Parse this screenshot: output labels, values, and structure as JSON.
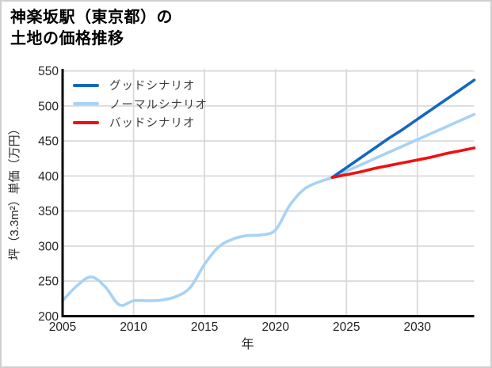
{
  "title": {
    "line1": "神楽坂駅（東京都）の",
    "line2": "土地の価格推移"
  },
  "legend": {
    "items": [
      {
        "id": "good",
        "label": "グッドシナリオ",
        "color": "#1467c0"
      },
      {
        "id": "normal",
        "label": "ノーマルシナリオ",
        "color": "#a8d2f5"
      },
      {
        "id": "bad",
        "label": "バッドシナリオ",
        "color": "#ee1111"
      }
    ]
  },
  "chart_data": {
    "type": "line",
    "title": "神楽坂駅（東京都）の土地の価格推移",
    "xlabel": "年",
    "ylabel": "坪（3.3m²）単価（万円）",
    "xlim": [
      2005,
      2034
    ],
    "ylim": [
      200,
      553
    ],
    "x_ticks": [
      2005,
      2010,
      2015,
      2020,
      2025,
      2030
    ],
    "y_ticks": [
      200,
      250,
      300,
      350,
      400,
      450,
      500,
      550
    ],
    "grid": true,
    "legend_position": "upper-left",
    "grid_color": "#d9d9d9",
    "axis_color": "#000000",
    "tick_label_color": "#262626",
    "series": [
      {
        "name": "ノーマルシナリオ",
        "color": "#a8d2f5",
        "width": 3.6,
        "smooth": true,
        "x": [
          2005,
          2006,
          2007,
          2008,
          2009,
          2010,
          2011,
          2012,
          2013,
          2014,
          2015,
          2016,
          2017,
          2018,
          2019,
          2020,
          2021,
          2022,
          2023,
          2024,
          2025,
          2026,
          2027,
          2028,
          2029,
          2030,
          2031,
          2032,
          2033,
          2034
        ],
        "y": [
          222,
          243,
          256,
          242,
          216,
          222,
          222,
          223,
          228,
          241,
          274,
          299,
          310,
          315,
          316,
          323,
          358,
          381,
          391,
          398,
          407,
          416,
          425,
          434,
          443,
          452,
          461,
          470,
          479,
          488
        ]
      },
      {
        "name": "グッドシナリオ",
        "color": "#1467c0",
        "width": 3.6,
        "smooth": true,
        "x": [
          2024,
          2025,
          2026,
          2027,
          2028,
          2029,
          2030,
          2031,
          2032,
          2033,
          2034
        ],
        "y": [
          398,
          412,
          426,
          440,
          454,
          467,
          481,
          495,
          509,
          523,
          537
        ]
      },
      {
        "name": "バッドシナリオ",
        "color": "#ee1111",
        "width": 3.6,
        "smooth": true,
        "x": [
          2024,
          2025,
          2026,
          2027,
          2028,
          2029,
          2030,
          2031,
          2032,
          2033,
          2034
        ],
        "y": [
          398,
          402,
          406,
          411,
          415,
          419,
          423,
          427,
          432,
          436,
          440
        ]
      }
    ]
  }
}
